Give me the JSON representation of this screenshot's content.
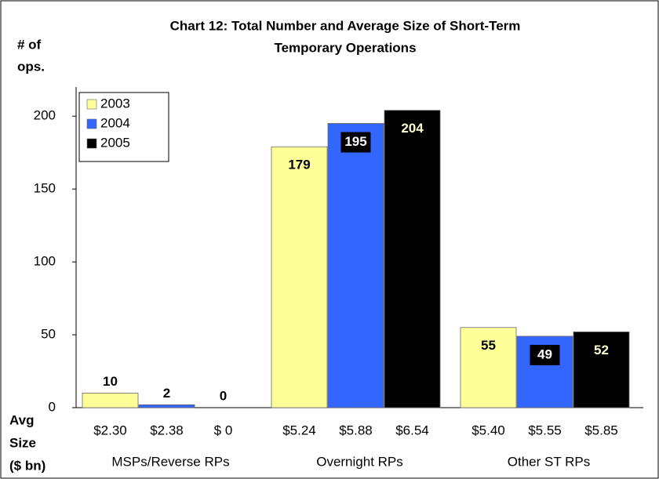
{
  "chart_data": {
    "type": "bar",
    "title": [
      "Chart 12:  Total Number and Average Size of Short-Term",
      "Temporary Operations"
    ],
    "ylabel": [
      "# of",
      "ops."
    ],
    "avg_label": [
      "Avg",
      "Size",
      "($ bn)"
    ],
    "categories": [
      "MSPs/Reverse RPs",
      "Overnight RPs",
      "Other ST RPs"
    ],
    "series": [
      {
        "name": "2003",
        "color": "#ffff99",
        "label_color": "#000000",
        "values": [
          10,
          179,
          55
        ],
        "avg_size_labels": [
          "$2.30",
          "$5.24",
          "$5.40"
        ]
      },
      {
        "name": "2004",
        "color": "#3366ff",
        "label_color": "#ffffff",
        "label_box": "#000000",
        "values": [
          2,
          195,
          49
        ],
        "avg_size_labels": [
          "$2.38",
          "$5.88",
          "$5.55"
        ]
      },
      {
        "name": "2005",
        "color": "#000000",
        "label_color": "#ffffcc",
        "values": [
          0,
          204,
          52
        ],
        "avg_size_labels": [
          "$ 0",
          "$6.54",
          "$5.85"
        ]
      }
    ],
    "ylim": [
      0,
      220
    ],
    "yticks": [
      0,
      50,
      100,
      150,
      200
    ],
    "legend": "top-left"
  }
}
